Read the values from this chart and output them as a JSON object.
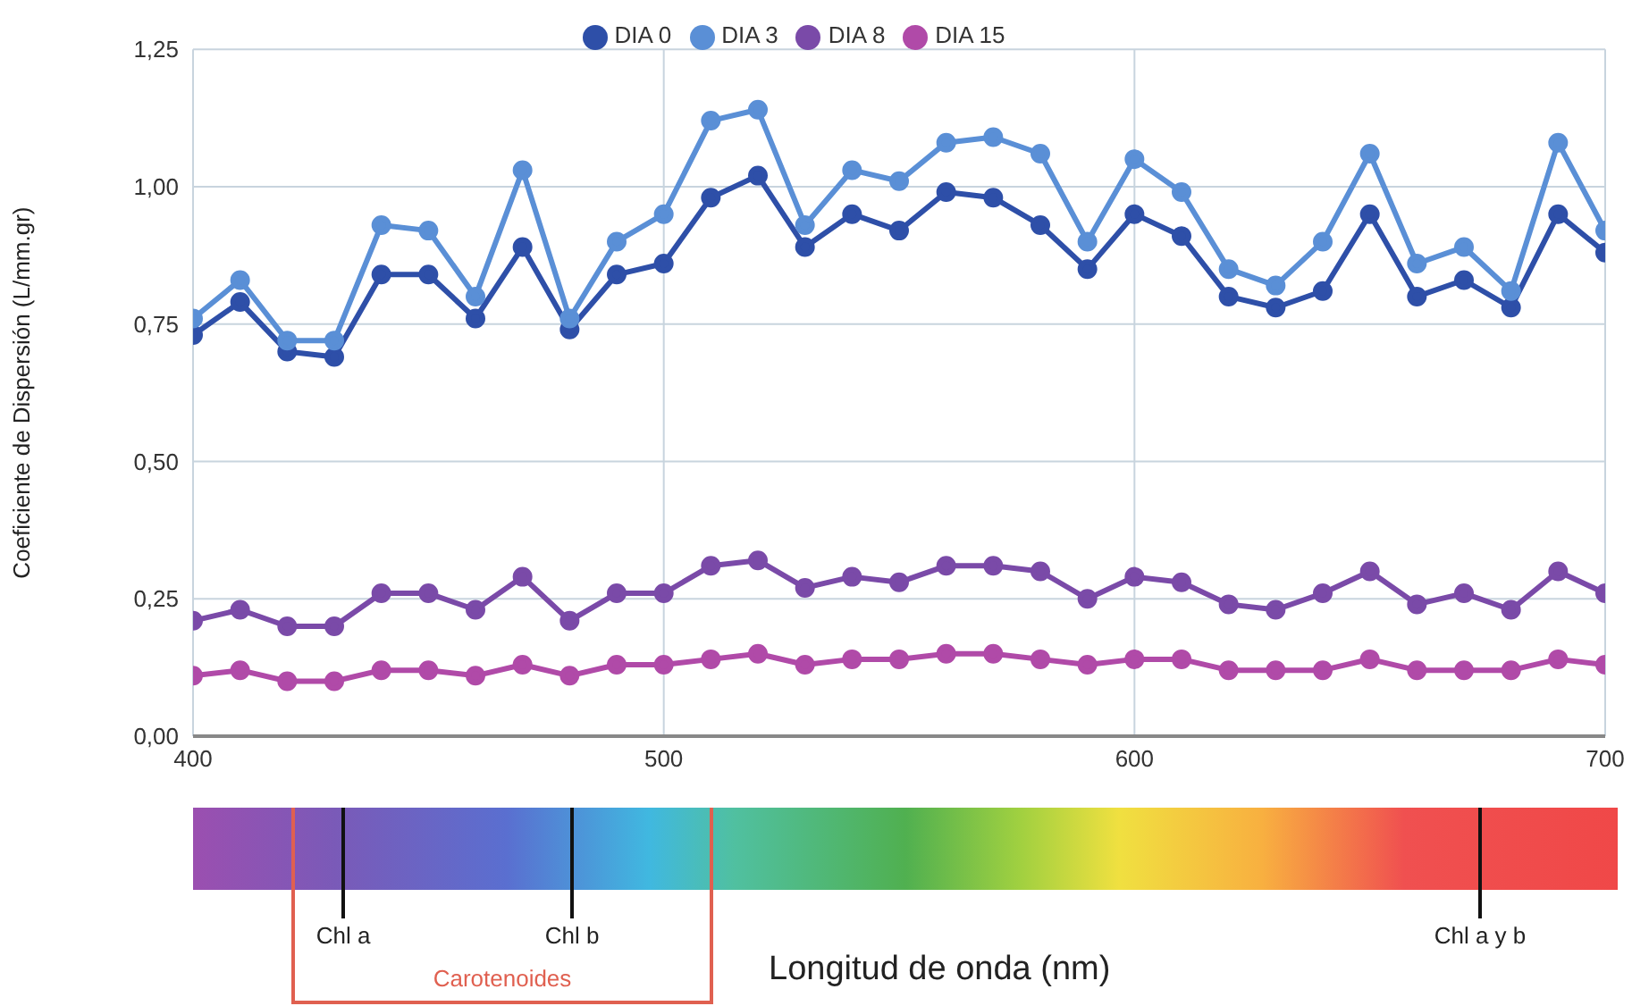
{
  "chart_data": {
    "type": "line",
    "ylabel": "Coeficiente de Dispersión (L/mm.gr)",
    "x": [
      400,
      410,
      420,
      430,
      440,
      450,
      460,
      470,
      480,
      490,
      500,
      510,
      520,
      530,
      540,
      550,
      560,
      570,
      580,
      590,
      600,
      610,
      620,
      630,
      640,
      650,
      660,
      670,
      680,
      690,
      700
    ],
    "series": [
      {
        "name": "DIA 0",
        "color": "#2e4fa8",
        "values": [
          0.73,
          0.79,
          0.7,
          0.69,
          0.84,
          0.84,
          0.76,
          0.89,
          0.74,
          0.84,
          0.86,
          0.98,
          1.02,
          0.89,
          0.95,
          0.92,
          0.99,
          0.98,
          0.93,
          0.85,
          0.95,
          0.91,
          0.8,
          0.78,
          0.81,
          0.95,
          0.8,
          0.83,
          0.78,
          0.95,
          0.88
        ]
      },
      {
        "name": "DIA 3",
        "color": "#5a8fd6",
        "values": [
          0.76,
          0.83,
          0.72,
          0.72,
          0.93,
          0.92,
          0.8,
          1.03,
          0.76,
          0.9,
          0.95,
          1.12,
          1.14,
          0.93,
          1.03,
          1.01,
          1.08,
          1.09,
          1.06,
          0.9,
          1.05,
          0.99,
          0.85,
          0.82,
          0.9,
          1.06,
          0.86,
          0.89,
          0.81,
          1.08,
          0.92
        ]
      },
      {
        "name": "DIA 8",
        "color": "#7a4aa8",
        "values": [
          0.21,
          0.23,
          0.2,
          0.2,
          0.26,
          0.26,
          0.23,
          0.29,
          0.21,
          0.26,
          0.26,
          0.31,
          0.32,
          0.27,
          0.29,
          0.28,
          0.31,
          0.31,
          0.3,
          0.25,
          0.29,
          0.28,
          0.24,
          0.23,
          0.26,
          0.3,
          0.24,
          0.26,
          0.23,
          0.3,
          0.26
        ]
      },
      {
        "name": "DIA 15",
        "color": "#b04aa8",
        "values": [
          0.11,
          0.12,
          0.1,
          0.1,
          0.12,
          0.12,
          0.11,
          0.13,
          0.11,
          0.13,
          0.13,
          0.14,
          0.15,
          0.13,
          0.14,
          0.14,
          0.15,
          0.15,
          0.14,
          0.13,
          0.14,
          0.14,
          0.12,
          0.12,
          0.12,
          0.14,
          0.12,
          0.12,
          0.12,
          0.14,
          0.13
        ]
      }
    ],
    "xlim": [
      400,
      700
    ],
    "xticks": [
      400,
      500,
      600,
      700
    ],
    "ylim": [
      0,
      1.25
    ],
    "yticks": [
      {
        "value": 0,
        "label": "0,00"
      },
      {
        "value": 0.25,
        "label": "0,25"
      },
      {
        "value": 0.5,
        "label": "0,50"
      },
      {
        "value": 0.75,
        "label": "0,75"
      },
      {
        "value": 1,
        "label": "1,00"
      },
      {
        "value": 1.25,
        "label": "1,25"
      }
    ],
    "annotations": [
      "Chl a",
      "Chl b",
      "Chl a y b",
      "Carotenoides",
      "Longitud de onda (nm)"
    ],
    "grid": true,
    "legend": "top",
    "marker": "circle",
    "line_style": "solid"
  }
}
